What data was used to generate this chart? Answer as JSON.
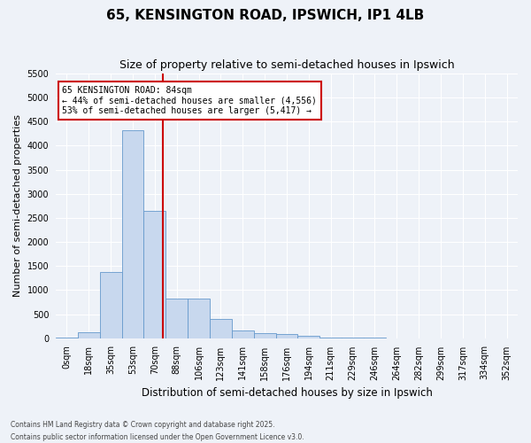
{
  "title": "65, KENSINGTON ROAD, IPSWICH, IP1 4LB",
  "subtitle": "Size of property relative to semi-detached houses in Ipswich",
  "xlabel": "Distribution of semi-detached houses by size in Ipswich",
  "ylabel": "Number of semi-detached properties",
  "footnote1": "Contains HM Land Registry data © Crown copyright and database right 2025.",
  "footnote2": "Contains public sector information licensed under the Open Government Licence v3.0.",
  "bin_labels": [
    "0sqm",
    "18sqm",
    "35sqm",
    "53sqm",
    "70sqm",
    "88sqm",
    "106sqm",
    "123sqm",
    "141sqm",
    "158sqm",
    "176sqm",
    "194sqm",
    "211sqm",
    "229sqm",
    "246sqm",
    "264sqm",
    "282sqm",
    "299sqm",
    "317sqm",
    "334sqm",
    "352sqm"
  ],
  "bar_heights": [
    10,
    130,
    1380,
    4330,
    2650,
    820,
    820,
    400,
    160,
    110,
    90,
    50,
    20,
    10,
    5,
    2,
    1,
    0,
    0,
    0,
    0
  ],
  "bar_color": "#c8d8ee",
  "bar_edge_color": "#6699cc",
  "property_label": "65 KENSINGTON ROAD: 84sqm",
  "pct_smaller": 44,
  "n_smaller": 4556,
  "pct_larger": 53,
  "n_larger": 5417,
  "vline_color": "#cc0000",
  "annotation_box_edgecolor": "#cc0000",
  "vline_bin_index": 4.85,
  "ylim": [
    0,
    5500
  ],
  "yticks": [
    0,
    500,
    1000,
    1500,
    2000,
    2500,
    3000,
    3500,
    4000,
    4500,
    5000,
    5500
  ],
  "bg_color": "#eef2f8",
  "grid_color": "#ffffff",
  "title_fontsize": 11,
  "subtitle_fontsize": 9,
  "tick_fontsize": 7,
  "ylabel_fontsize": 8,
  "xlabel_fontsize": 8.5,
  "annot_fontsize": 7,
  "footnote_fontsize": 5.5
}
